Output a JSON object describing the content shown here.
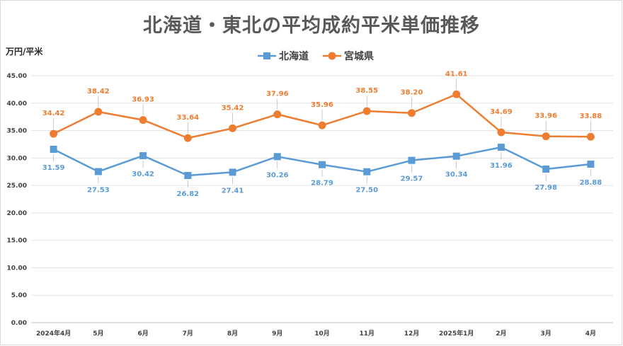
{
  "title": "北海道・東北の平均成約平米単価推移",
  "y_unit": "万円/平米",
  "chart_data": {
    "type": "line",
    "title": "北海道・東北の平均成約平米単価推移",
    "ylabel": "万円/平米",
    "xlabel": "",
    "ylim": [
      0,
      45
    ],
    "ytick_step": 5,
    "grid": true,
    "legend_position": "top",
    "categories": [
      "2024年4月",
      "5月",
      "6月",
      "7月",
      "8月",
      "9月",
      "10月",
      "11月",
      "12月",
      "2025年1月",
      "2月",
      "3月",
      "4月"
    ],
    "series": [
      {
        "name": "北海道",
        "color": "#5b9bd5",
        "marker": "square",
        "values": [
          31.59,
          27.53,
          30.42,
          26.82,
          27.41,
          30.26,
          28.79,
          27.5,
          29.57,
          30.34,
          31.96,
          27.98,
          28.88
        ],
        "labels": [
          "31.59",
          "27.53",
          "30.42",
          "26.82",
          "27.41",
          "30.26",
          "28.79",
          "27.50",
          "29.57",
          "30.34",
          "31.96",
          "27.98",
          "28.88"
        ]
      },
      {
        "name": "宮城県",
        "color": "#ed7d31",
        "marker": "circle",
        "values": [
          34.42,
          38.42,
          36.93,
          33.64,
          35.42,
          37.96,
          35.96,
          38.55,
          38.2,
          41.61,
          34.69,
          33.96,
          33.88
        ],
        "labels": [
          "34.42",
          "38.42",
          "36.93",
          "33.64",
          "35.42",
          "37.96",
          "35.96",
          "38.55",
          "38.20",
          "41.61",
          "34.69",
          "33.96",
          "33.88"
        ]
      }
    ]
  }
}
